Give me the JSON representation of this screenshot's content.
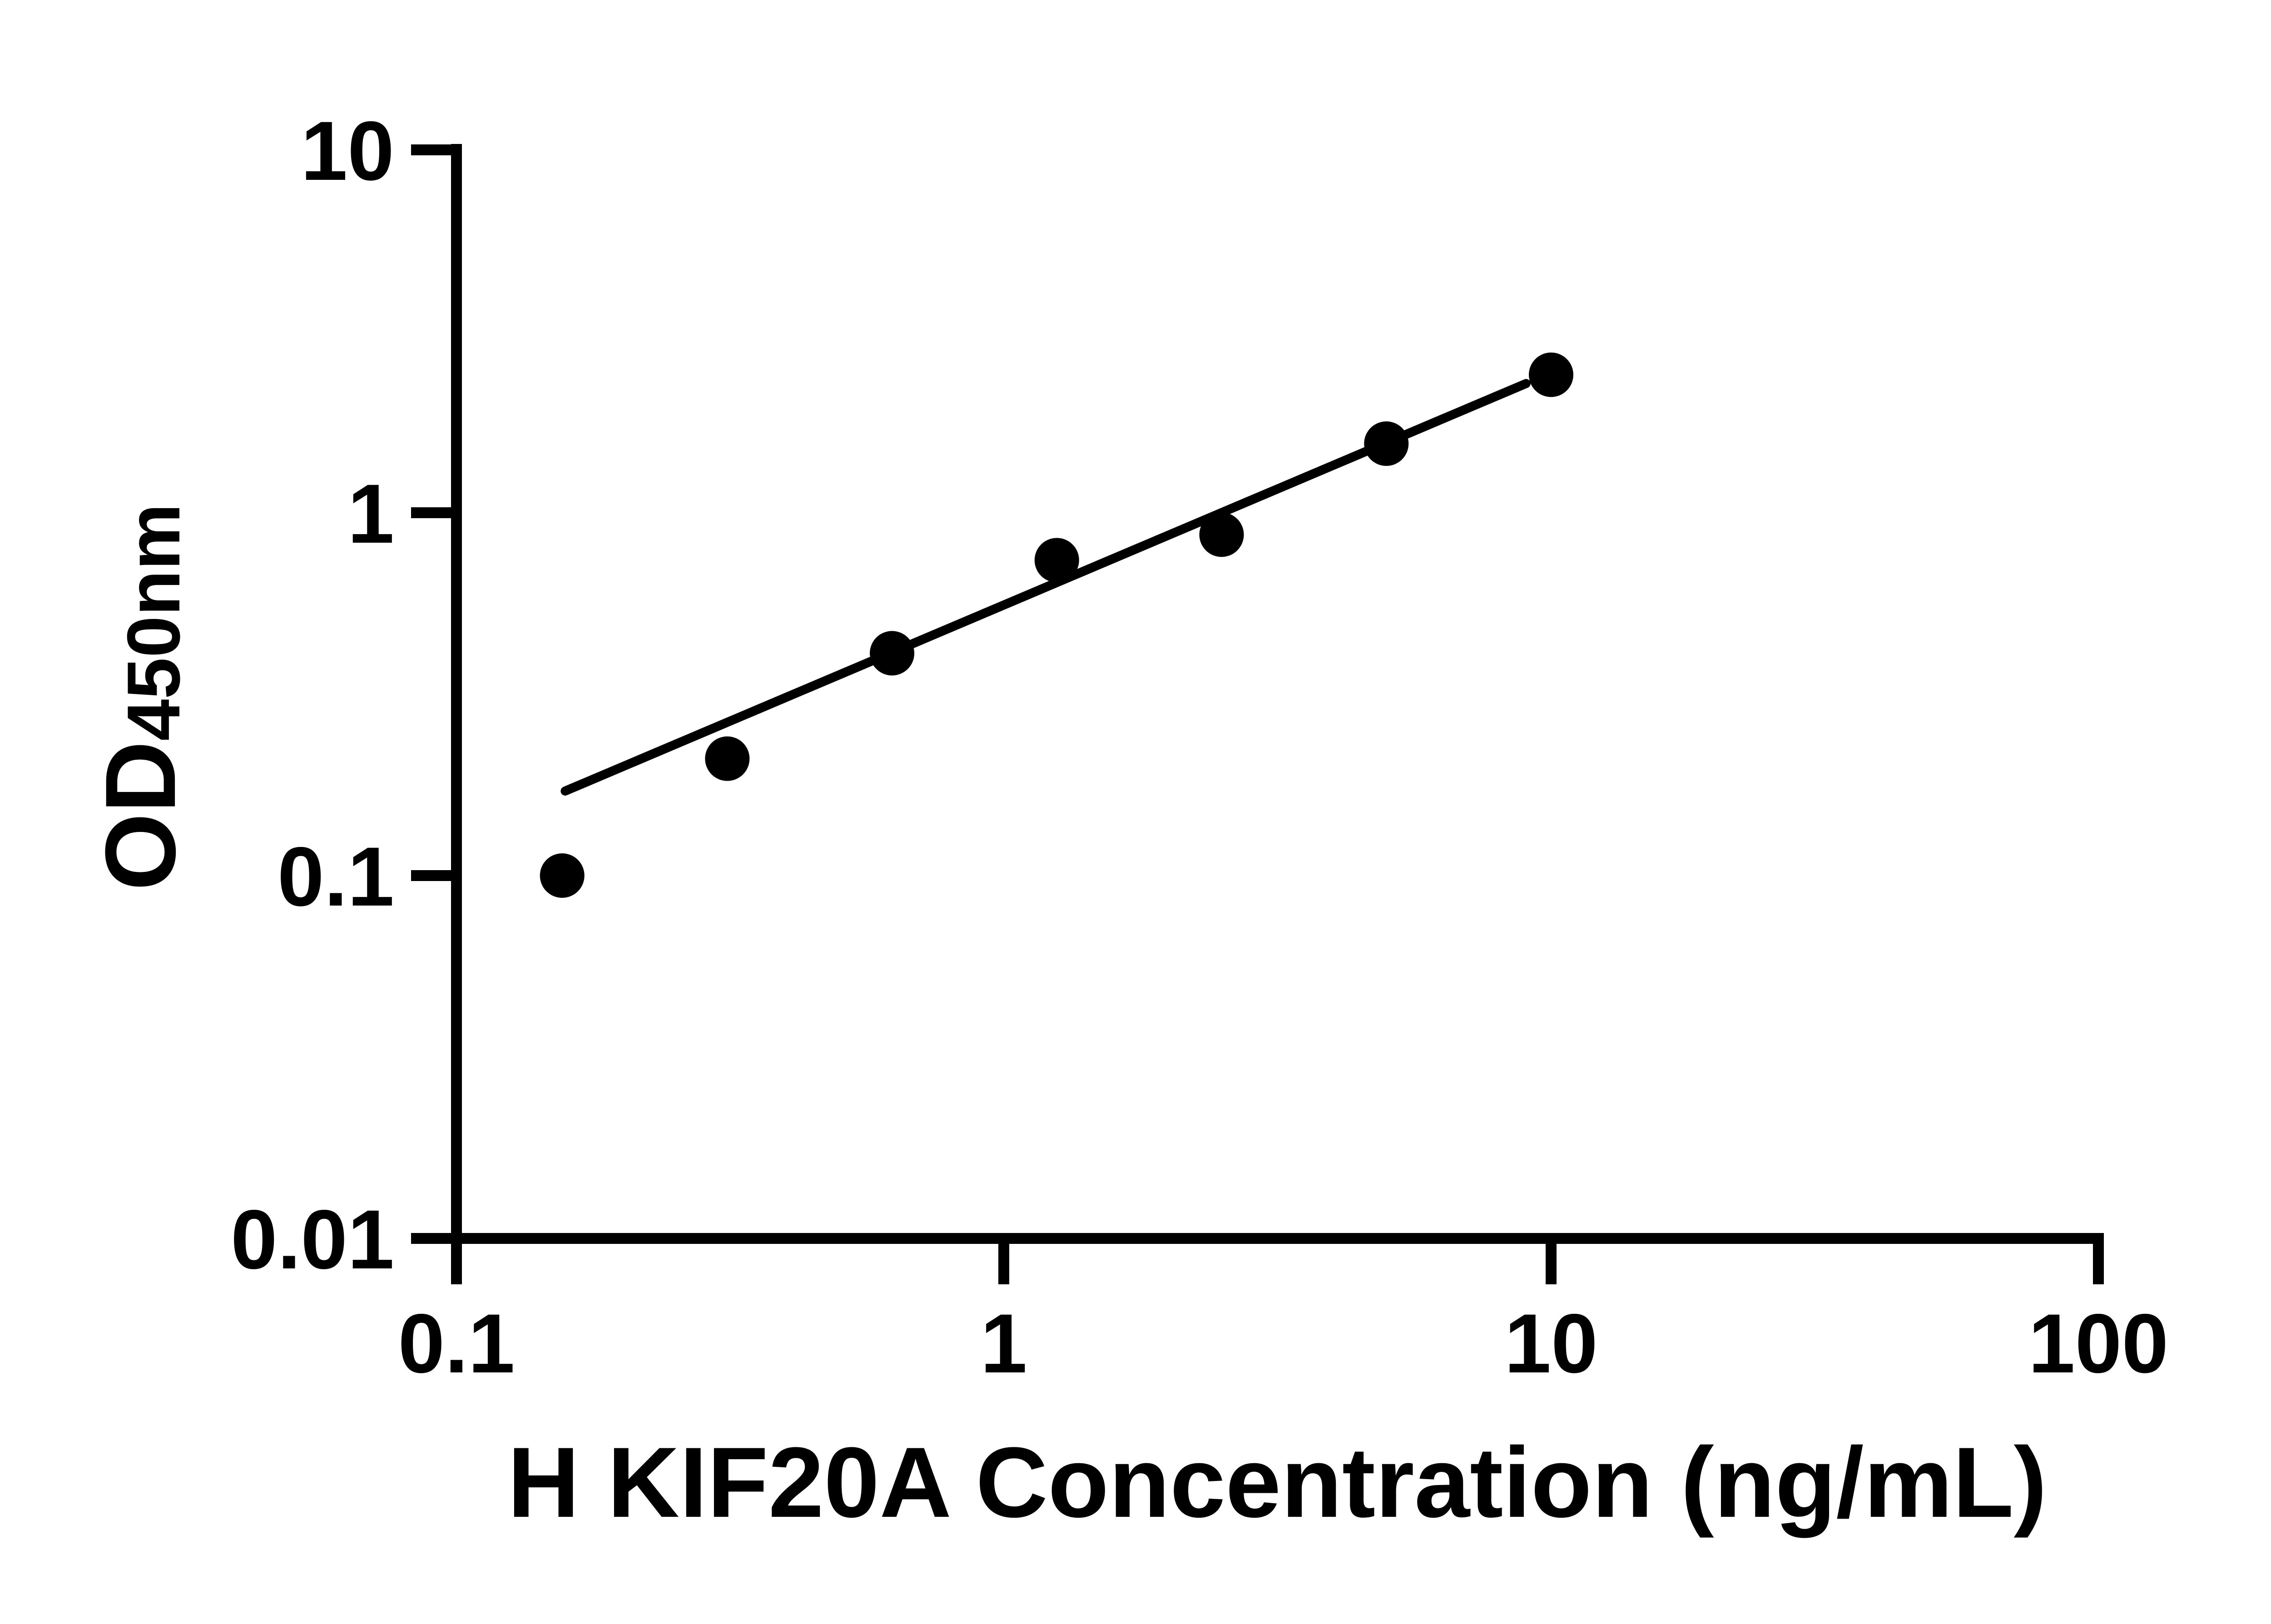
{
  "page": {
    "background_color": "#ffffff",
    "ink_color": "#000000"
  },
  "chart_data": {
    "type": "scatter",
    "title": "",
    "xlabel": "H KIF20A Concentration (ng/mL)",
    "ylabel_main": "OD",
    "ylabel_sub": "450nm",
    "x_scale": "log",
    "y_scale": "log",
    "xlim": [
      0.1,
      100
    ],
    "ylim": [
      0.01,
      10
    ],
    "grid": false,
    "legend": false,
    "axis_color": "#000000",
    "marker": {
      "shape": "circle",
      "color": "#000000"
    },
    "x_ticks": [
      {
        "value": 0.1,
        "label": "0.1"
      },
      {
        "value": 1,
        "label": "1"
      },
      {
        "value": 10,
        "label": "10"
      },
      {
        "value": 100,
        "label": "100"
      }
    ],
    "y_ticks": [
      {
        "value": 10,
        "label": "10"
      },
      {
        "value": 1,
        "label": "1"
      },
      {
        "value": 0.1,
        "label": "0.1"
      },
      {
        "value": 0.01,
        "label": "0.01"
      }
    ],
    "points": [
      {
        "x": 0.156,
        "y": 0.1
      },
      {
        "x": 0.3125,
        "y": 0.21
      },
      {
        "x": 0.625,
        "y": 0.41
      },
      {
        "x": 1.25,
        "y": 0.74
      },
      {
        "x": 2.5,
        "y": 0.87
      },
      {
        "x": 5,
        "y": 1.55
      },
      {
        "x": 10,
        "y": 2.4
      }
    ],
    "trend_line": {
      "x1": 0.158,
      "y1": 0.171,
      "x2": 9.0,
      "y2": 2.27
    }
  }
}
